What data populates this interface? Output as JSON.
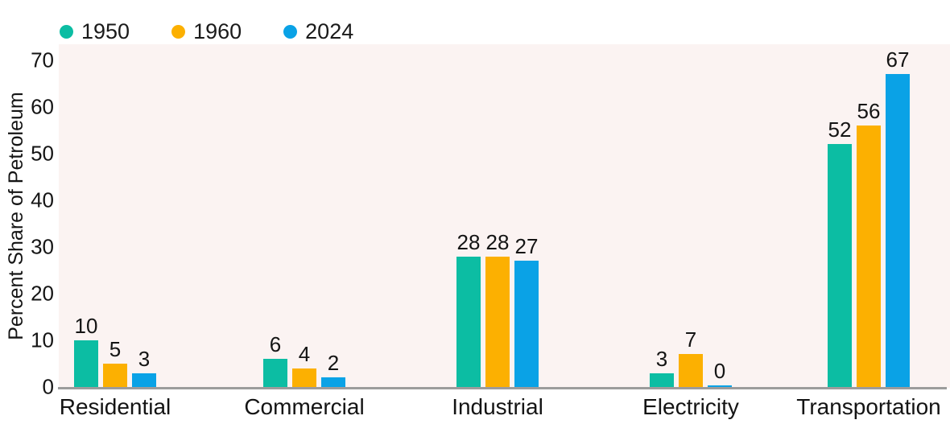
{
  "chart_data": {
    "type": "bar",
    "title": "",
    "categories": [
      "Residential",
      "Commercial",
      "Industrial",
      "Electricity",
      "Transportation"
    ],
    "series": [
      {
        "name": "1950",
        "color": "#0cbda3",
        "values": [
          10,
          6,
          28,
          3,
          52
        ]
      },
      {
        "name": "1960",
        "color": "#fcb001",
        "values": [
          5,
          4,
          28,
          7,
          56
        ]
      },
      {
        "name": "2024",
        "color": "#0aa2e6",
        "values": [
          3,
          2,
          27,
          0,
          67
        ]
      }
    ],
    "xlabel": "",
    "ylabel": "Percent Share of Petroleum",
    "yticks": [
      0,
      10,
      20,
      30,
      40,
      50,
      60,
      70
    ],
    "ylim": [
      0,
      70
    ],
    "grid": false,
    "legend_position": "top-left",
    "data_labels": true
  },
  "colors": {
    "series_1950": "#0cbda3",
    "series_1960": "#fcb001",
    "series_2024": "#0aa2e6",
    "plot_background": "#fbf3f2",
    "axis_line": "#9c9c9c",
    "text": "#141414",
    "page_background": "#ffffff"
  }
}
